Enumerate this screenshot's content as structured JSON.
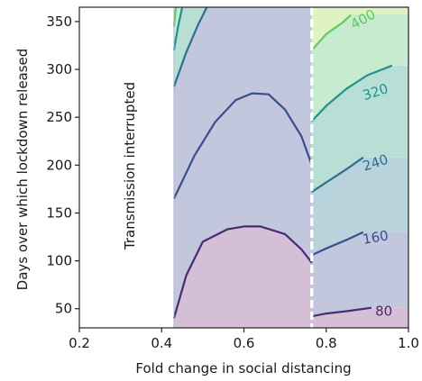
{
  "chart_data": {
    "type": "contour",
    "xlabel": "Fold change in social distancing",
    "ylabel": "Days over which lockdown released",
    "xlim": [
      0.2,
      1.0
    ],
    "ylim": [
      30,
      365
    ],
    "x_ticks": [
      "0.2",
      "0.4",
      "0.6",
      "0.8",
      "1.0"
    ],
    "y_ticks": [
      "50",
      "100",
      "150",
      "200",
      "250",
      "300",
      "350"
    ],
    "annotation": "Transmission interrupted",
    "interrupted_region": {
      "x_max": 0.43
    },
    "threshold_line": {
      "x": 0.765,
      "style": "dashed",
      "color": "#ffffff"
    },
    "fills": [
      {
        "level": "< 80",
        "color": "#d4bfd6"
      },
      {
        "level": "80-160",
        "color": "#c3c7de"
      },
      {
        "level": "160-240",
        "color": "#b9d3dc"
      },
      {
        "level": "240-320",
        "color": "#b8dfd6"
      },
      {
        "level": "320-400",
        "color": "#c6ebcf"
      },
      {
        "level": "> 400",
        "color": "#dff2c2"
      }
    ],
    "contours": [
      {
        "level": 80,
        "label": "80",
        "color": "#462c72",
        "left": [
          [
            0.43,
            40
          ],
          [
            0.46,
            85
          ],
          [
            0.5,
            120
          ],
          [
            0.56,
            133
          ],
          [
            0.6,
            136
          ],
          [
            0.64,
            136
          ],
          [
            0.7,
            128
          ],
          [
            0.74,
            112
          ],
          [
            0.765,
            98
          ]
        ],
        "right": [
          [
            0.765,
            42
          ],
          [
            0.8,
            45
          ],
          [
            0.86,
            48
          ],
          [
            0.91,
            51
          ]
        ]
      },
      {
        "level": 160,
        "label": "160",
        "color": "#3a4e8c",
        "left": [
          [
            0.43,
            165
          ],
          [
            0.48,
            210
          ],
          [
            0.53,
            245
          ],
          [
            0.58,
            268
          ],
          [
            0.62,
            275
          ],
          [
            0.66,
            274
          ],
          [
            0.7,
            258
          ],
          [
            0.74,
            230
          ],
          [
            0.765,
            200
          ]
        ],
        "right": [
          [
            0.765,
            106
          ],
          [
            0.8,
            113
          ],
          [
            0.85,
            122
          ],
          [
            0.89,
            130
          ]
        ]
      },
      {
        "level": 240,
        "label": "240",
        "color": "#2f6d8e",
        "left": [
          [
            0.43,
            282
          ],
          [
            0.46,
            318
          ],
          [
            0.49,
            348
          ],
          [
            0.51,
            365
          ]
        ],
        "right": [
          [
            0.765,
            172
          ],
          [
            0.8,
            182
          ],
          [
            0.85,
            196
          ],
          [
            0.89,
            208
          ]
        ]
      },
      {
        "level": 320,
        "label": "320",
        "color": "#21918c",
        "left": [
          [
            0.43,
            320
          ],
          [
            0.44,
            345
          ],
          [
            0.45,
            365
          ]
        ],
        "right": [
          [
            0.765,
            246
          ],
          [
            0.8,
            262
          ],
          [
            0.85,
            280
          ],
          [
            0.9,
            294
          ],
          [
            0.96,
            304
          ]
        ]
      },
      {
        "level": 400,
        "label": "400",
        "color": "#5ec962",
        "left": [
          [
            0.43,
            345
          ],
          [
            0.435,
            365
          ]
        ],
        "right": [
          [
            0.765,
            320
          ],
          [
            0.8,
            337
          ],
          [
            0.84,
            349
          ],
          [
            0.86,
            357
          ]
        ]
      }
    ],
    "contour_labels": [
      {
        "text": "400",
        "x": 0.89,
        "y": 352,
        "rotate": -28,
        "color": "#5ec962"
      },
      {
        "text": "320",
        "x": 0.92,
        "y": 276,
        "rotate": -18,
        "color": "#21918c"
      },
      {
        "text": "240",
        "x": 0.92,
        "y": 202,
        "rotate": -18,
        "color": "#2f6d8e"
      },
      {
        "text": "160",
        "x": 0.92,
        "y": 124,
        "rotate": -10,
        "color": "#3a4e8c"
      },
      {
        "text": "80",
        "x": 0.94,
        "y": 47,
        "rotate": 0,
        "color": "#462c72"
      }
    ]
  }
}
